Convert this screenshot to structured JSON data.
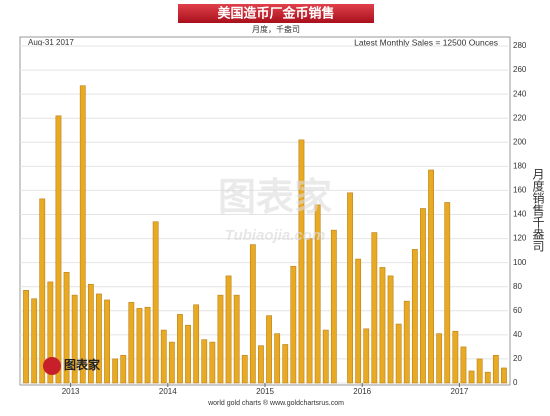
{
  "chart_data": {
    "type": "bar",
    "title": "美国造币厂金币销售",
    "subtitle": "月度，千盎司",
    "date_label": "Aug-31  2017",
    "note": "Latest Monthly Sales = 12500 Ounces",
    "y_axis_label": "月度销售千盎司",
    "footer": "world gold charts ® www.goldchartsrus.com",
    "watermark": "图表家",
    "watermark_url": "Tubiaojia.com",
    "logo": "图表家",
    "categories": [
      null,
      null,
      null,
      null,
      null,
      null,
      "2013",
      null,
      null,
      null,
      null,
      null,
      null,
      null,
      null,
      null,
      null,
      null,
      "2014",
      null,
      null,
      null,
      null,
      null,
      null,
      null,
      null,
      null,
      null,
      null,
      "2015",
      null,
      null,
      null,
      null,
      null,
      null,
      null,
      null,
      null,
      null,
      null,
      "2016",
      null,
      null,
      null,
      null,
      null,
      null,
      null,
      null,
      null,
      null,
      null,
      "2017",
      null,
      null,
      null,
      null,
      null
    ],
    "values": [
      77,
      70,
      153,
      84,
      222,
      92,
      73,
      247,
      82,
      74,
      69,
      20,
      23,
      67,
      62,
      63,
      134,
      44,
      34,
      57,
      48,
      65,
      36,
      34,
      73,
      89,
      73,
      23,
      115,
      31,
      56,
      41,
      32,
      97,
      202,
      120,
      148,
      44,
      127,
      0,
      158,
      103,
      45,
      125,
      96,
      89,
      49,
      68,
      111,
      145,
      177,
      41,
      150,
      43,
      30,
      10,
      20,
      9,
      23,
      12.5
    ],
    "color": "#e8a923",
    "ylim": [
      0,
      280
    ],
    "yticks": [
      0,
      20,
      40,
      60,
      80,
      100,
      120,
      140,
      160,
      180,
      200,
      220,
      240,
      260,
      280
    ],
    "grid": true
  }
}
